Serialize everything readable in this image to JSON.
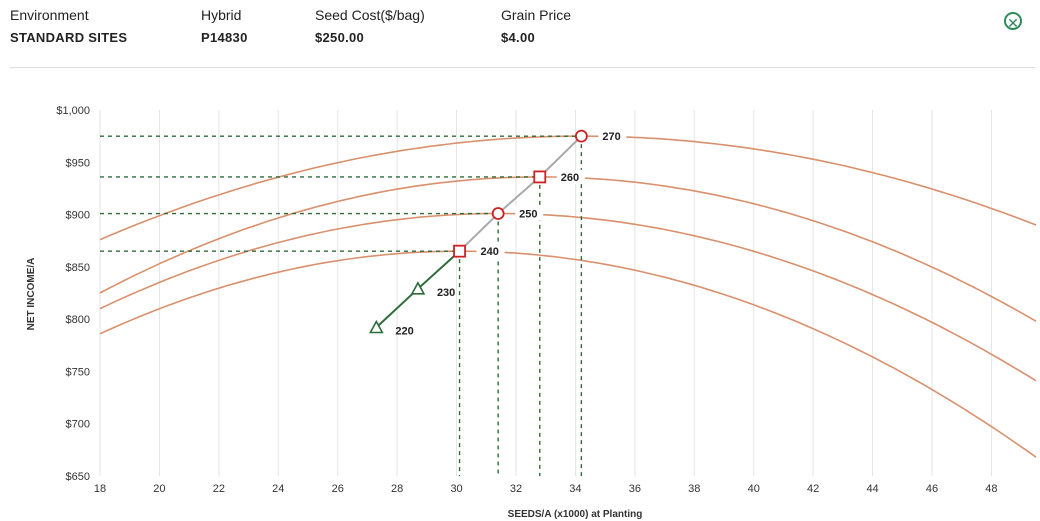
{
  "header": {
    "environment": {
      "label": "Environment",
      "value": "STANDARD SITES"
    },
    "hybrid": {
      "label": "Hybrid",
      "value": "P14830"
    },
    "seed_cost": {
      "label": "Seed Cost($/bag)",
      "value": "$250.00"
    },
    "grain_price": {
      "label": "Grain Price",
      "value": "$4.00"
    },
    "close_icon": "close-circle-icon"
  },
  "colors": {
    "curve": "#d9906c",
    "optimum": "#cc2222",
    "low": "#2e6b3a",
    "path": "#aaaaaa",
    "dash": "#2e6b3a",
    "grid": "#e4e4e4"
  },
  "chart_data": {
    "type": "line",
    "xlabel": "SEEDS/A (x1000) at Planting",
    "ylabel": "NET INCOME/A",
    "xlim": [
      18,
      49.5
    ],
    "ylim": [
      650,
      1000
    ],
    "xticks": [
      18,
      20,
      22,
      24,
      26,
      28,
      30,
      32,
      34,
      36,
      38,
      40,
      42,
      44,
      46,
      48
    ],
    "yticks": [
      650,
      700,
      750,
      800,
      850,
      900,
      950,
      1000
    ],
    "ytick_labels": [
      "$650",
      "$700",
      "$750",
      "$800",
      "$850",
      "$900",
      "$950",
      "$1,000"
    ],
    "grid": "vertical",
    "curves": [
      {
        "name": "240",
        "peak_x": 30.1,
        "peak_y": 865,
        "start_y": 786,
        "end_y": 668
      },
      {
        "name": "250",
        "peak_x": 31.4,
        "peak_y": 901,
        "start_y": 810,
        "end_y": 741
      },
      {
        "name": "260",
        "peak_x": 32.8,
        "peak_y": 936,
        "start_y": 825,
        "end_y": 798
      },
      {
        "name": "270",
        "peak_x": 34.2,
        "peak_y": 975,
        "start_y": 876,
        "end_y": 890
      }
    ],
    "optimum_points": [
      {
        "label": "220",
        "x": 27.3,
        "y": 792,
        "marker": "triangle"
      },
      {
        "label": "230",
        "x": 28.7,
        "y": 829,
        "marker": "triangle"
      },
      {
        "label": "240",
        "x": 30.1,
        "y": 865,
        "marker": "square"
      },
      {
        "label": "250",
        "x": 31.4,
        "y": 901,
        "marker": "circle"
      },
      {
        "label": "260",
        "x": 32.8,
        "y": 936,
        "marker": "square"
      },
      {
        "label": "270",
        "x": 34.2,
        "y": 975,
        "marker": "circle"
      }
    ]
  }
}
